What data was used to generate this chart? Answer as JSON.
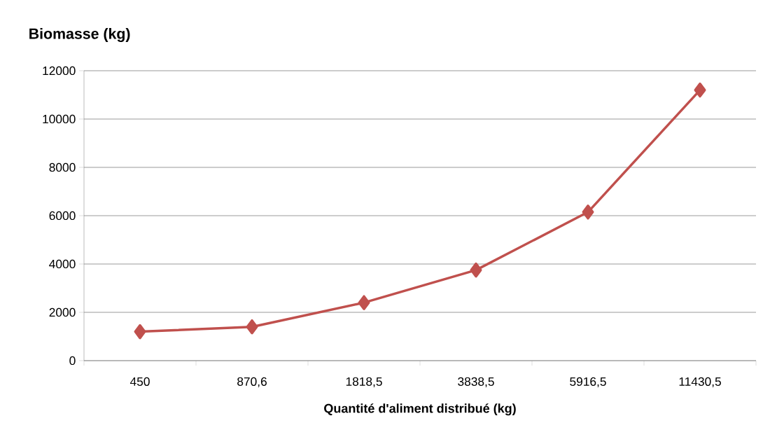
{
  "chart_data": {
    "type": "line",
    "ylabel": "Biomasse (kg)",
    "xlabel": "Quantité d'aliment distribué (kg)",
    "categories": [
      "450",
      "870,6",
      "1818,5",
      "3838,5",
      "5916,5",
      "11430,5"
    ],
    "series": [
      {
        "color": "#c0504d",
        "values": [
          1200,
          1400,
          2400,
          3750,
          6150,
          11200
        ]
      }
    ],
    "ylim": [
      0,
      12000
    ],
    "yticks": [
      0,
      2000,
      4000,
      6000,
      8000,
      10000,
      12000
    ],
    "grid": "y",
    "marker": "diamond",
    "line_style": "solid"
  }
}
